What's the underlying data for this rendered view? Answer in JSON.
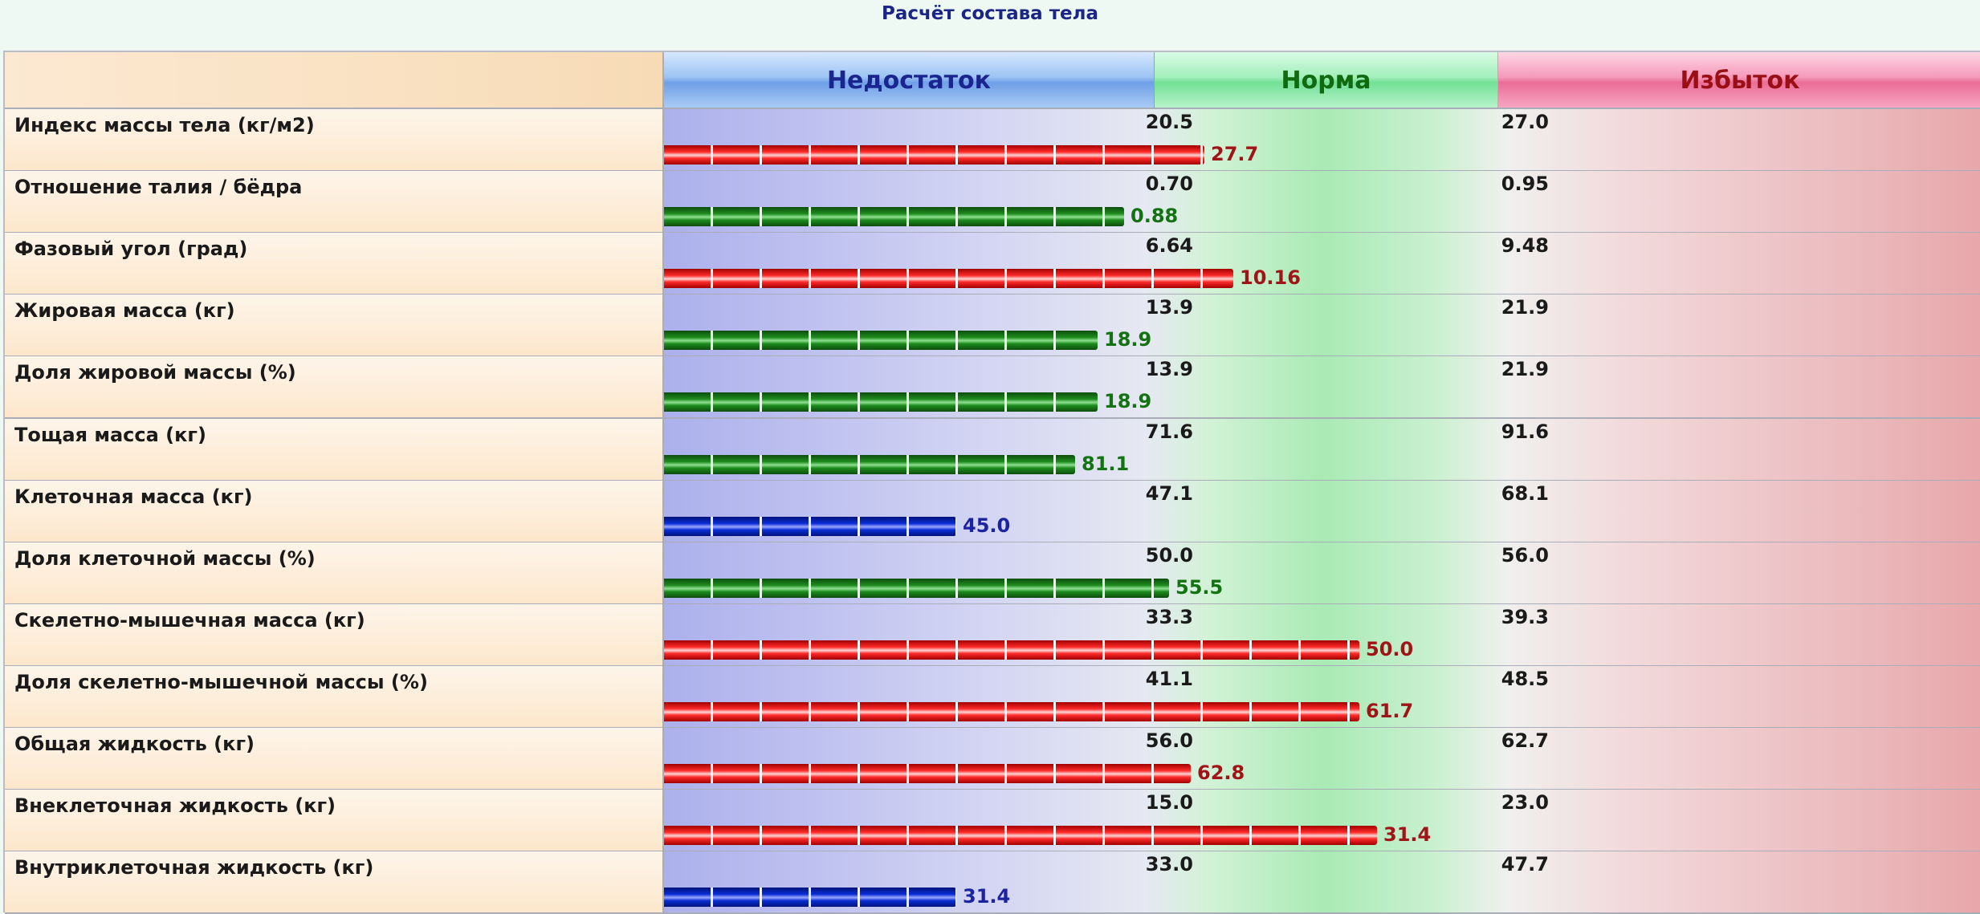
{
  "title": "Расчёт состава тела",
  "zones": {
    "low": "Недостаток",
    "norm": "Норма",
    "high": "Избыток"
  },
  "colors": {
    "low": "#1b23a0",
    "norm": "#137313",
    "high": "#a01418"
  },
  "chart_data": {
    "type": "bar",
    "orientation": "horizontal",
    "rows": [
      {
        "name": "Индекс массы тела (кг/м2)",
        "low": "20.5",
        "high": "27.0",
        "value": "27.7",
        "status": "high",
        "fill": 0.41
      },
      {
        "name": "Отношение талия / бёдра",
        "low": "0.70",
        "high": "0.95",
        "value": "0.88",
        "status": "norm",
        "fill": 0.349
      },
      {
        "name": "Фазовый угол (град)",
        "low": "6.64",
        "high": "9.48",
        "value": "10.16",
        "status": "high",
        "fill": 0.432
      },
      {
        "name": "Жировая масса (кг)",
        "low": "13.9",
        "high": "21.9",
        "value": "18.9",
        "status": "norm",
        "fill": 0.329
      },
      {
        "name": "Доля жировой массы (%)",
        "low": "13.9",
        "high": "21.9",
        "value": "18.9",
        "status": "norm",
        "fill": 0.329
      },
      {
        "name": "Тощая масса (кг)",
        "low": "71.6",
        "high": "91.6",
        "value": "81.1",
        "status": "norm",
        "fill": 0.312
      },
      {
        "name": "Клеточная масса (кг)",
        "low": "47.1",
        "high": "68.1",
        "value": "45.0",
        "status": "low",
        "fill": 0.222
      },
      {
        "name": "Доля клеточной массы (%)",
        "low": "50.0",
        "high": "56.0",
        "value": "55.5",
        "status": "norm",
        "fill": 0.383
      },
      {
        "name": "Скелетно-мышечная масса (кг)",
        "low": "33.3",
        "high": "39.3",
        "value": "50.0",
        "status": "high",
        "fill": 0.528
      },
      {
        "name": "Доля скелетно-мышечной массы (%)",
        "low": "41.1",
        "high": "48.5",
        "value": "61.7",
        "status": "high",
        "fill": 0.528
      },
      {
        "name": "Общая жидкость (кг)",
        "low": "56.0",
        "high": "62.7",
        "value": "62.8",
        "status": "high",
        "fill": 0.4
      },
      {
        "name": "Внеклеточная жидкость (кг)",
        "low": "15.0",
        "high": "23.0",
        "value": "31.4",
        "status": "high",
        "fill": 0.541
      },
      {
        "name": "Внутриклеточная жидкость (кг)",
        "low": "33.0",
        "high": "47.7",
        "value": "31.4",
        "status": "low",
        "fill": 0.222
      }
    ]
  }
}
